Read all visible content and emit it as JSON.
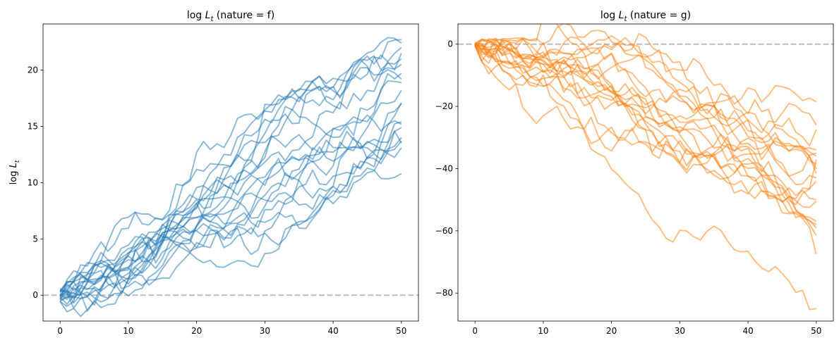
{
  "chart_data": [
    {
      "type": "line",
      "panel": "left",
      "title": "log L_t (nature = f)",
      "title_math": "log L",
      "title_sub": "t",
      "title_suffix": " (nature = f)",
      "xlabel": "",
      "ylabel": "log L_t",
      "ylabel_math": "log L",
      "ylabel_sub": "t",
      "xlim": [
        -2.5,
        52.5
      ],
      "ylim": [
        -2.3,
        24.1
      ],
      "xticks": [
        0,
        10,
        20,
        30,
        40,
        50
      ],
      "yticks": [
        0,
        5,
        10,
        15,
        20
      ],
      "grid": false,
      "color": "#1f77b4",
      "alpha": 0.5,
      "n_series": 20,
      "n_steps": 50,
      "seed": 11,
      "endpoints": [
        10.8,
        13.1,
        13.7,
        14.0,
        14.9,
        15.2,
        15.4,
        17.0,
        17.1,
        18.2,
        18.9,
        19.2,
        19.7,
        20.5,
        21.0,
        21.5,
        22.0,
        22.4,
        22.7,
        13.5
      ],
      "step_noise": 0.7,
      "baseline": {
        "y": 0,
        "style": "dashed",
        "color": "#999999"
      }
    },
    {
      "type": "line",
      "panel": "right",
      "title": "log L_t (nature = g)",
      "title_math": "log L",
      "title_sub": "t",
      "title_suffix": " (nature = g)",
      "xlabel": "",
      "ylabel": "",
      "xlim": [
        -2.5,
        52.5
      ],
      "ylim": [
        -89,
        6.5
      ],
      "xticks": [
        0,
        10,
        20,
        30,
        40,
        50
      ],
      "yticks": [
        0,
        -20,
        -40,
        -60,
        -80
      ],
      "grid": false,
      "color": "#ff7f0e",
      "alpha": 0.5,
      "n_series": 20,
      "n_steps": 50,
      "seed": 29,
      "endpoints": [
        -18.5,
        -26.0,
        -27.5,
        -34.0,
        -35.0,
        -37.0,
        -38.5,
        -40.0,
        -41.5,
        -43.0,
        -44.0,
        -50.0,
        -50.5,
        -57.0,
        -58.0,
        -59.0,
        -61.5,
        -67.5,
        -85.0,
        -36.0
      ],
      "step_noise": 2.4,
      "baseline": {
        "y": 0,
        "style": "dashed",
        "color": "#999999"
      }
    }
  ]
}
